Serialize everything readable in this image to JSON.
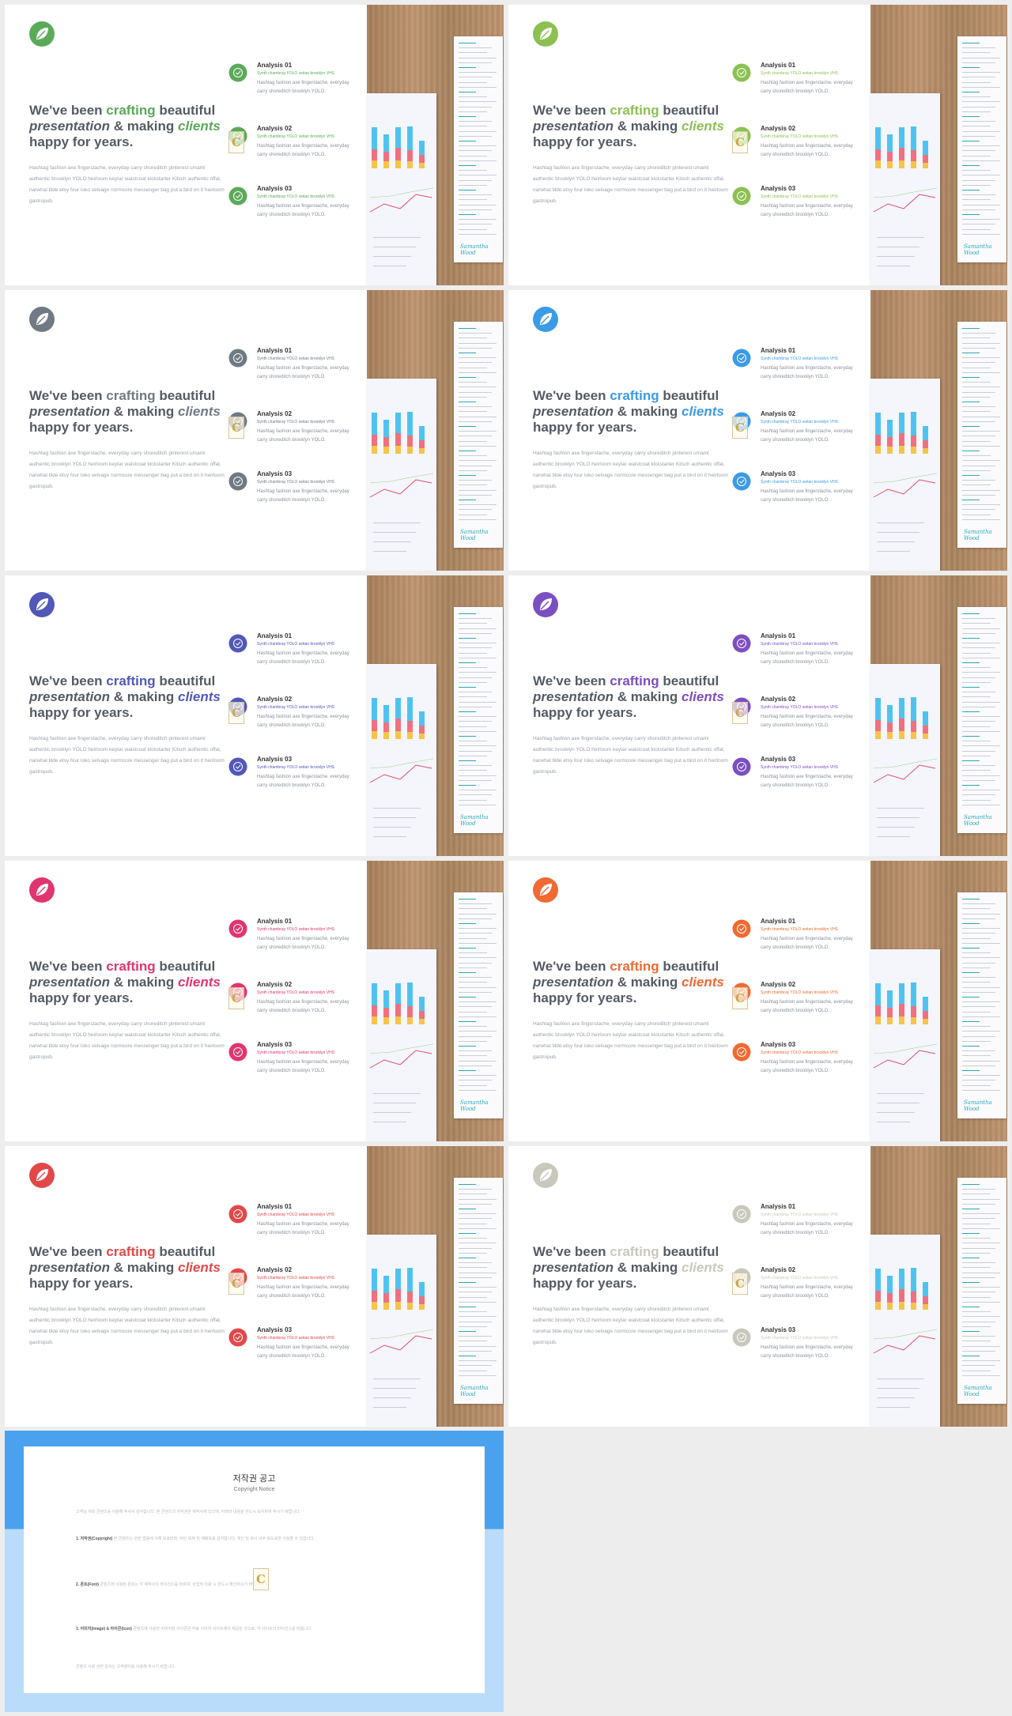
{
  "slide": {
    "headline_line1_a": "We've been ",
    "headline_accent1": "crafting",
    "headline_line1_b": " beautiful",
    "headline_line2_it": "presentation",
    "headline_line2_b": " & making ",
    "headline_accent2": "clients",
    "headline_line3": "happy for years.",
    "paragraph": "Hashtag fashion axe fingerstache, everyday carry shoreditch pinterest umami authentic brooklyn YOLO heirloom keytar waistcoat kickstarter Kitsch authentic offal, narwhal tilde etsy four loko selvage normcore messenger bag put a bird on it heirloom gastropub.",
    "items": [
      {
        "title": "Analysis 01",
        "sub": "Synth chambray YOLO seitan brooklyn VHS",
        "body": "Hashtag fashion axe fingerstache, everyday carry shoreditch brooklyn YOLO."
      },
      {
        "title": "Analysis 02",
        "sub": "Synth chambray YOLO seitan brooklyn VHS",
        "body": "Hashtag fashion axe fingerstache, everyday carry shoreditch brooklyn YOLO."
      },
      {
        "title": "Analysis 03",
        "sub": "Synth chambray YOLO seitan brooklyn VHS",
        "body": "Hashtag fashion axe fingerstache, everyday carry shoreditch brooklyn YOLO."
      }
    ],
    "signature": "Samantha Wood"
  },
  "accents": [
    "#5aaa5a",
    "#8cc152",
    "#707a84",
    "#3c9be6",
    "#5258b8",
    "#7c4fc0",
    "#e0356e",
    "#f06a32",
    "#e24848",
    "#c8c8bc"
  ],
  "notice": {
    "title": "저작권 공고",
    "subtitle": "Copyright Notice",
    "p1": "고객님 저희 콘텐츠를 이용해 주셔서 감사합니다. 본 콘텐츠의 저작권은 제작사에 있으며, 아래의 내용을 반드시 숙지하여 주시기 바랍니다.",
    "p2_head": "1. 저작권(Copyright)",
    "p2": " 본 콘텐츠는 관련 법률에 의해 보호되며, 무단 복제 및 재배포를 금지합니다. 개인 및 회사 내부 용도로만 사용할 수 있습니다.",
    "p3_head": "2. 폰트(Font)",
    "p3": " 콘텐츠에 사용된 폰트는 각 제작사의 라이선스를 따르며, 상업적 이용 시 반드시 확인하시기 바랍니다.",
    "p4_head": "3. 이미지(Image) & 아이콘(Icon)",
    "p4": " 콘텐츠에 사용된 이미지와 아이콘은 무료 이미지 사이트에서 제공된 것으로, 각 사이트의 라이선스를 따릅니다.",
    "p5": "콘텐츠 사용 관련 문의는 고객센터를 이용해 주시기 바랍니다."
  }
}
